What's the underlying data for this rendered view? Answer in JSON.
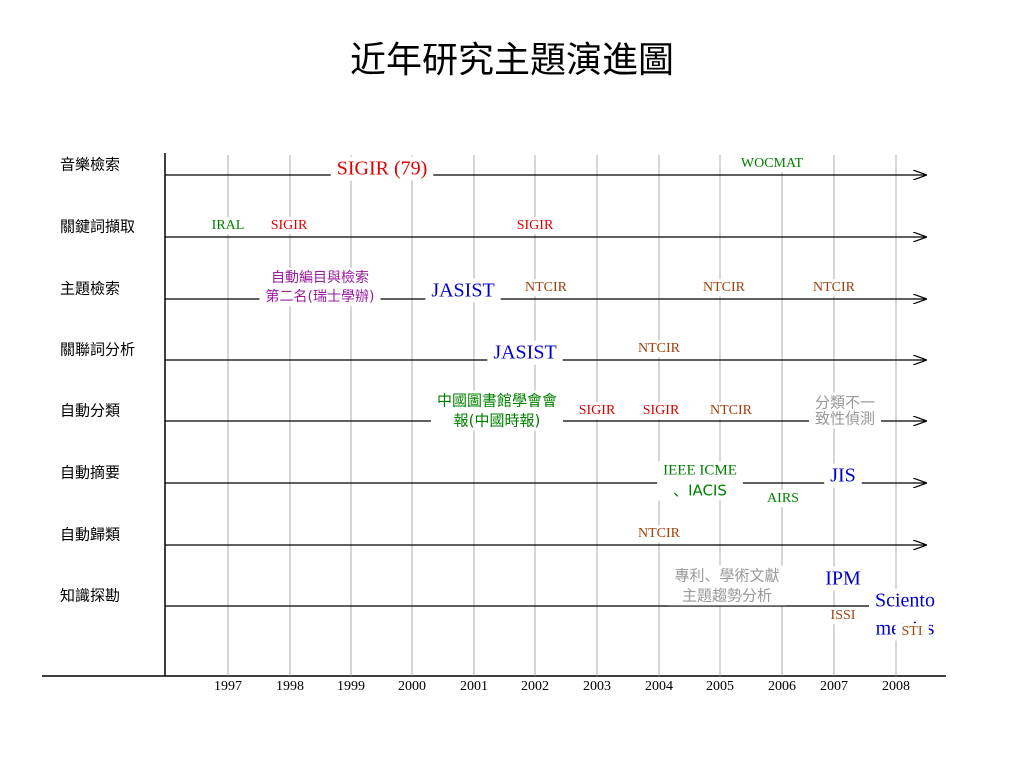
{
  "title": "近年研究主題演進圖",
  "rows": [
    {
      "label": "音樂檢索",
      "items": [
        [
          "SIGIR (79)"
        ],
        [
          "WOCMAT"
        ]
      ]
    },
    {
      "label": "關鍵詞擷取",
      "items": [
        [
          "IRAL"
        ],
        [
          "SIGIR"
        ],
        [
          "SIGIR"
        ]
      ]
    },
    {
      "label": "主題檢索",
      "items": [
        [
          "自動編目與檢索",
          "第二名(瑞士學辦)"
        ],
        [
          "JASIST"
        ],
        [
          "NTCIR"
        ],
        [
          "NTCIR"
        ],
        [
          "NTCIR"
        ]
      ]
    },
    {
      "label": "關聯詞分析",
      "items": [
        [
          "JASIST"
        ],
        [
          "NTCIR"
        ]
      ]
    },
    {
      "label": "自動分類",
      "items": [
        [
          "中國圖書館學會會",
          "報(中國時報)"
        ],
        [
          "SIGIR"
        ],
        [
          "SIGIR"
        ],
        [
          "NTCIR"
        ],
        [
          "分類不一",
          "致性偵測"
        ]
      ]
    },
    {
      "label": "自動摘要",
      "items": [
        [
          "IEEE ICME",
          "、IACIS"
        ],
        [
          "AIRS"
        ],
        [
          "JIS"
        ]
      ]
    },
    {
      "label": "自動歸類",
      "items": [
        [
          "NTCIR"
        ]
      ]
    },
    {
      "label": "知識探勘",
      "items": [
        [
          "專利、學術文獻",
          "主題趨勢分析"
        ],
        [
          "IPM"
        ],
        [
          "ISSI"
        ],
        [
          "Sciento",
          "metrics"
        ],
        [
          "STI"
        ]
      ]
    }
  ],
  "years": [
    "1997",
    "1998",
    "1999",
    "2000",
    "2001",
    "2002",
    "2003",
    "2004",
    "2005",
    "2006",
    "2007",
    "2008"
  ]
}
